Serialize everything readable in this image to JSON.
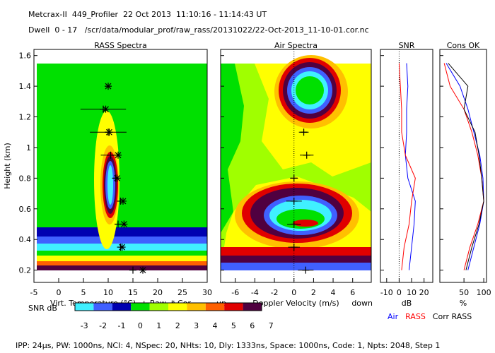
{
  "header": {
    "line1": "Metcrax-II  449_Profiler  22 Oct 2013  11:10:16 - 11:14:43 UT",
    "line2": "Dwell  0 - 17   /scr/data/modular_prof/raw_rass/20131022/22-Oct-2013_11-10-01.cor.nc",
    "footer": "IPP: 24μs, PW: 1000ns, NCI: 4, NSpec: 20, NHts: 10, Dly: 1333ns, Space: 1000ns, Code: 1, Npts: 2048, Step 1"
  },
  "chart_data": [
    {
      "type": "scatter",
      "title": "RASS Spectra",
      "xlabel": "Virt. Temperature (°C)  + Raw  * Cor",
      "ylabel": "Height (km)",
      "xlim": [
        -5,
        30
      ],
      "xticks": [
        -5,
        0,
        5,
        10,
        15,
        20,
        25,
        30
      ],
      "ylim": [
        0.12,
        1.64
      ],
      "yticks": [
        0.2,
        0.4,
        0.6,
        0.8,
        1.0,
        1.2,
        1.4,
        1.6
      ],
      "heights": [
        1.4,
        1.25,
        1.1,
        0.95,
        0.8,
        0.65,
        0.5,
        0.35,
        0.2
      ],
      "series": [
        {
          "name": "Raw",
          "marker": "plus",
          "values": [
            null,
            9,
            10,
            10.5,
            11.5,
            12.5,
            12,
            12.5,
            15
          ],
          "errors": [
            null,
            4.6,
            3.7,
            2,
            null,
            null,
            null,
            null,
            null
          ]
        },
        {
          "name": "Cor",
          "marker": "star",
          "values": [
            10,
            9.5,
            10.2,
            12,
            11.8,
            13,
            13.2,
            12.8,
            17
          ]
        }
      ]
    },
    {
      "type": "scatter",
      "title": "Air Spectra",
      "xlabel": "Doppler Velocity (m/s)",
      "left_label": "up",
      "right_label": "down",
      "xlim": [
        -7.5,
        7.9
      ],
      "xticks": [
        -6,
        -4,
        -2,
        0,
        2,
        4,
        6
      ],
      "heights": [
        1.1,
        0.95,
        0.8,
        0.65,
        0.5,
        0.35,
        0.2
      ],
      "series": [
        {
          "marker": "plus",
          "values": [
            1.0,
            1.3,
            0,
            0,
            0,
            0,
            1.2
          ],
          "errors": [
            0.5,
            0.7,
            0.4,
            0.8,
            0.7,
            0.6,
            0.8
          ]
        }
      ]
    },
    {
      "type": "line",
      "title": "SNR",
      "xlabel": "dB",
      "xlim": [
        -15,
        27
      ],
      "xticks": [
        -10,
        0,
        10,
        20
      ],
      "heights": [
        1.55,
        1.4,
        1.25,
        1.1,
        0.95,
        0.8,
        0.65,
        0.5,
        0.35,
        0.2
      ],
      "series": [
        {
          "name": "Air",
          "color": "#0000ff",
          "values": [
            6,
            7,
            6,
            6,
            5,
            7,
            13,
            12,
            10,
            8
          ]
        },
        {
          "name": "RASS",
          "color": "#ff0000",
          "values": [
            0,
            1,
            2,
            2,
            5,
            13,
            10,
            8,
            4,
            2
          ]
        }
      ]
    },
    {
      "type": "line",
      "title": "Cons OK",
      "xlabel": "%",
      "xlim": [
        -11,
        107
      ],
      "xticks": [
        50,
        100
      ],
      "heights": [
        1.55,
        1.4,
        1.25,
        1.1,
        0.95,
        0.8,
        0.65,
        0.5,
        0.35,
        0.2
      ],
      "series": [
        {
          "name": "Air",
          "color": "#0000ff",
          "values": [
            5,
            40,
            60,
            75,
            90,
            98,
            100,
            90,
            75,
            60
          ]
        },
        {
          "name": "RASS",
          "color": "#ff0000",
          "values": [
            0,
            15,
            50,
            70,
            85,
            95,
            100,
            85,
            65,
            50
          ]
        },
        {
          "name": "Corr RASS",
          "color": "#000000",
          "values": [
            10,
            60,
            50,
            78,
            88,
            95,
            100,
            88,
            70,
            55
          ]
        }
      ]
    },
    {
      "type": "colorbar",
      "title": "SNR dB",
      "ticks": [
        -3,
        -2,
        -1,
        0,
        1,
        2,
        3,
        4,
        5,
        6,
        7
      ],
      "colors": [
        "#40f0ff",
        "#4060ff",
        "#0000b0",
        "#00e000",
        "#a0ff00",
        "#ffff00",
        "#ffc000",
        "#ff6000",
        "#e00000",
        "#500040"
      ]
    }
  ]
}
